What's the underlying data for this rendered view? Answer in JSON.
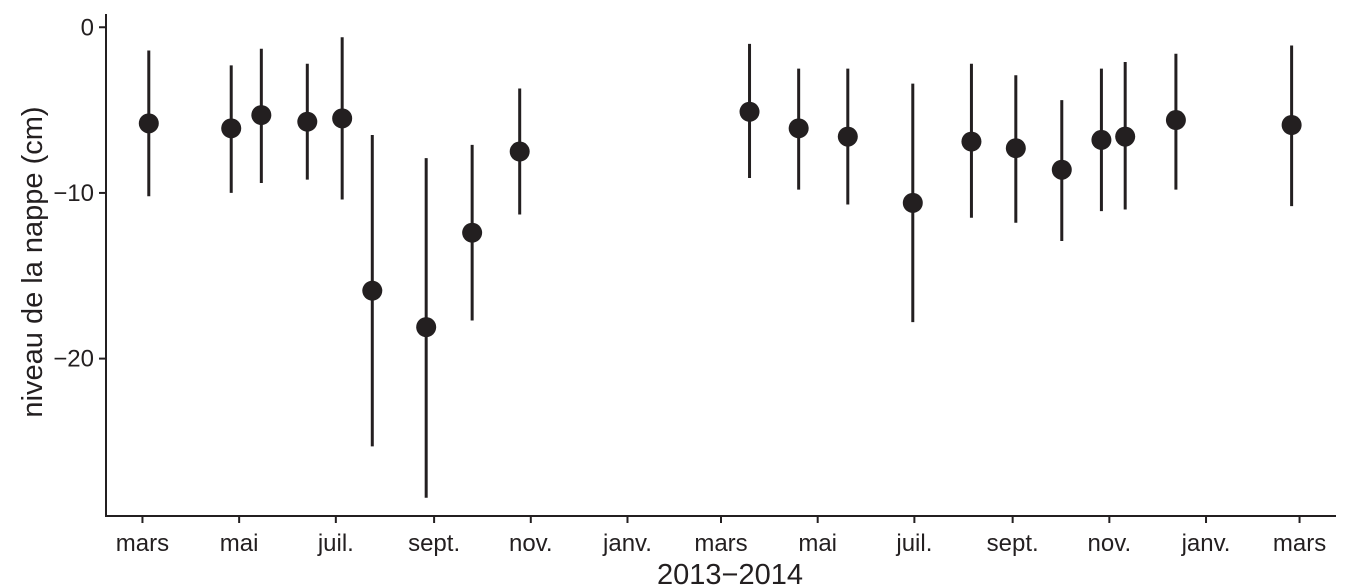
{
  "chart_data": {
    "type": "scatter",
    "subtype": "point-range",
    "title": "",
    "xlabel": "2013−2014",
    "ylabel": "niveau de la nappe (cm)",
    "x_axis_type": "date",
    "xlim": [
      "2013-02-06",
      "2015-03-24"
    ],
    "ylim": [
      -29.5,
      0.8
    ],
    "grid": false,
    "legend": "none",
    "x_ticks": [
      {
        "date": "2013-03-01",
        "label": "mars"
      },
      {
        "date": "2013-05-01",
        "label": "mai"
      },
      {
        "date": "2013-07-01",
        "label": "juil."
      },
      {
        "date": "2013-09-01",
        "label": "sept."
      },
      {
        "date": "2013-11-01",
        "label": "nov."
      },
      {
        "date": "2014-01-01",
        "label": "janv."
      },
      {
        "date": "2014-03-01",
        "label": "mars"
      },
      {
        "date": "2014-05-01",
        "label": "mai"
      },
      {
        "date": "2014-07-01",
        "label": "juil."
      },
      {
        "date": "2014-09-01",
        "label": "sept."
      },
      {
        "date": "2014-11-01",
        "label": "nov."
      },
      {
        "date": "2015-01-01",
        "label": "janv."
      },
      {
        "date": "2015-03-01",
        "label": "mars"
      }
    ],
    "y_ticks": [
      {
        "value": 0,
        "label": "0"
      },
      {
        "value": -10,
        "label": "−10"
      },
      {
        "value": -20,
        "label": "−20"
      }
    ],
    "points": [
      {
        "x": "2013-03-05",
        "y": -5.8,
        "low": -10.2,
        "high": -1.4
      },
      {
        "x": "2013-04-26",
        "y": -6.1,
        "low": -10.0,
        "high": -2.3
      },
      {
        "x": "2013-05-15",
        "y": -5.3,
        "low": -9.4,
        "high": -1.3
      },
      {
        "x": "2013-06-13",
        "y": -5.7,
        "low": -9.2,
        "high": -2.2
      },
      {
        "x": "2013-07-05",
        "y": -5.5,
        "low": -10.4,
        "high": -0.6
      },
      {
        "x": "2013-07-24",
        "y": -15.9,
        "low": -25.3,
        "high": -6.5
      },
      {
        "x": "2013-08-27",
        "y": -18.1,
        "low": -28.4,
        "high": -7.9
      },
      {
        "x": "2013-09-25",
        "y": -12.4,
        "low": -17.7,
        "high": -7.1
      },
      {
        "x": "2013-10-25",
        "y": -7.5,
        "low": -11.3,
        "high": -3.7
      },
      {
        "x": "2014-03-19",
        "y": -5.1,
        "low": -9.1,
        "high": -1.0
      },
      {
        "x": "2014-04-19",
        "y": -6.1,
        "low": -9.8,
        "high": -2.5
      },
      {
        "x": "2014-05-20",
        "y": -6.6,
        "low": -10.7,
        "high": -2.5
      },
      {
        "x": "2014-06-30",
        "y": -10.6,
        "low": -17.8,
        "high": -3.4
      },
      {
        "x": "2014-08-06",
        "y": -6.9,
        "low": -11.5,
        "high": -2.2
      },
      {
        "x": "2014-09-03",
        "y": -7.3,
        "low": -11.8,
        "high": -2.9
      },
      {
        "x": "2014-10-02",
        "y": -8.6,
        "low": -12.9,
        "high": -4.4
      },
      {
        "x": "2014-10-27",
        "y": -6.8,
        "low": -11.1,
        "high": -2.5
      },
      {
        "x": "2014-11-11",
        "y": -6.6,
        "low": -11.0,
        "high": -2.1
      },
      {
        "x": "2014-12-13",
        "y": -5.6,
        "low": -9.8,
        "high": -1.6
      },
      {
        "x": "2015-02-24",
        "y": -5.9,
        "low": -10.8,
        "high": -1.1
      }
    ],
    "colors": {
      "point": "#231f20",
      "axis": "#231f20"
    }
  }
}
